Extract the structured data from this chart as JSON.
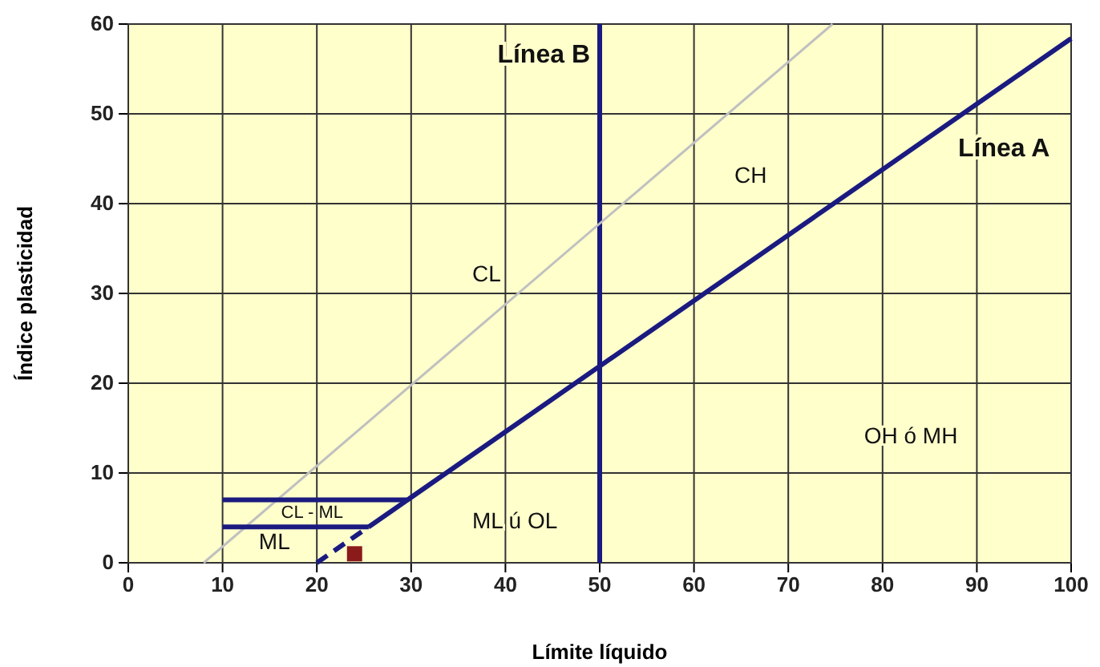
{
  "chart_data": {
    "type": "line",
    "xlabel": "Límite líquido",
    "ylabel": "Índice plasticidad",
    "xlim": [
      0,
      100
    ],
    "ylim": [
      0,
      60
    ],
    "xticks": [
      0,
      10,
      20,
      30,
      40,
      50,
      60,
      70,
      80,
      90,
      100
    ],
    "yticks": [
      0,
      10,
      20,
      30,
      40,
      50,
      60
    ],
    "grid": true,
    "series": [
      {
        "color": "#c0c0c0",
        "line_style": "solid",
        "x": [
          8,
          74.7
        ],
        "values": [
          0,
          60
        ]
      },
      {
        "color": "#1a1a80",
        "line_style": "dashed",
        "x": [
          20,
          25.5
        ],
        "values": [
          0,
          4
        ]
      },
      {
        "name": "Línea A",
        "color": "#1a1a80",
        "line_style": "solid",
        "x": [
          25.5,
          100
        ],
        "values": [
          4,
          58.4
        ]
      },
      {
        "color": "#1a1a80",
        "line_style": "solid",
        "x": [
          10,
          29.6
        ],
        "values": [
          7,
          7
        ]
      },
      {
        "color": "#1a1a80",
        "line_style": "solid",
        "x": [
          10,
          25.5
        ],
        "values": [
          4,
          4
        ]
      },
      {
        "type": "scatter",
        "color": "#8b1a1a",
        "marker": "square",
        "x": [
          24
        ],
        "values": [
          1
        ]
      }
    ],
    "ref_lines": [
      {
        "axis": "x",
        "value": 50,
        "label": "Línea B",
        "color": "#1a1a80"
      }
    ],
    "annotations": [
      "CH",
      "CL",
      "OH ó MH",
      "ML ú OL",
      "CL - ML",
      "ML"
    ]
  }
}
